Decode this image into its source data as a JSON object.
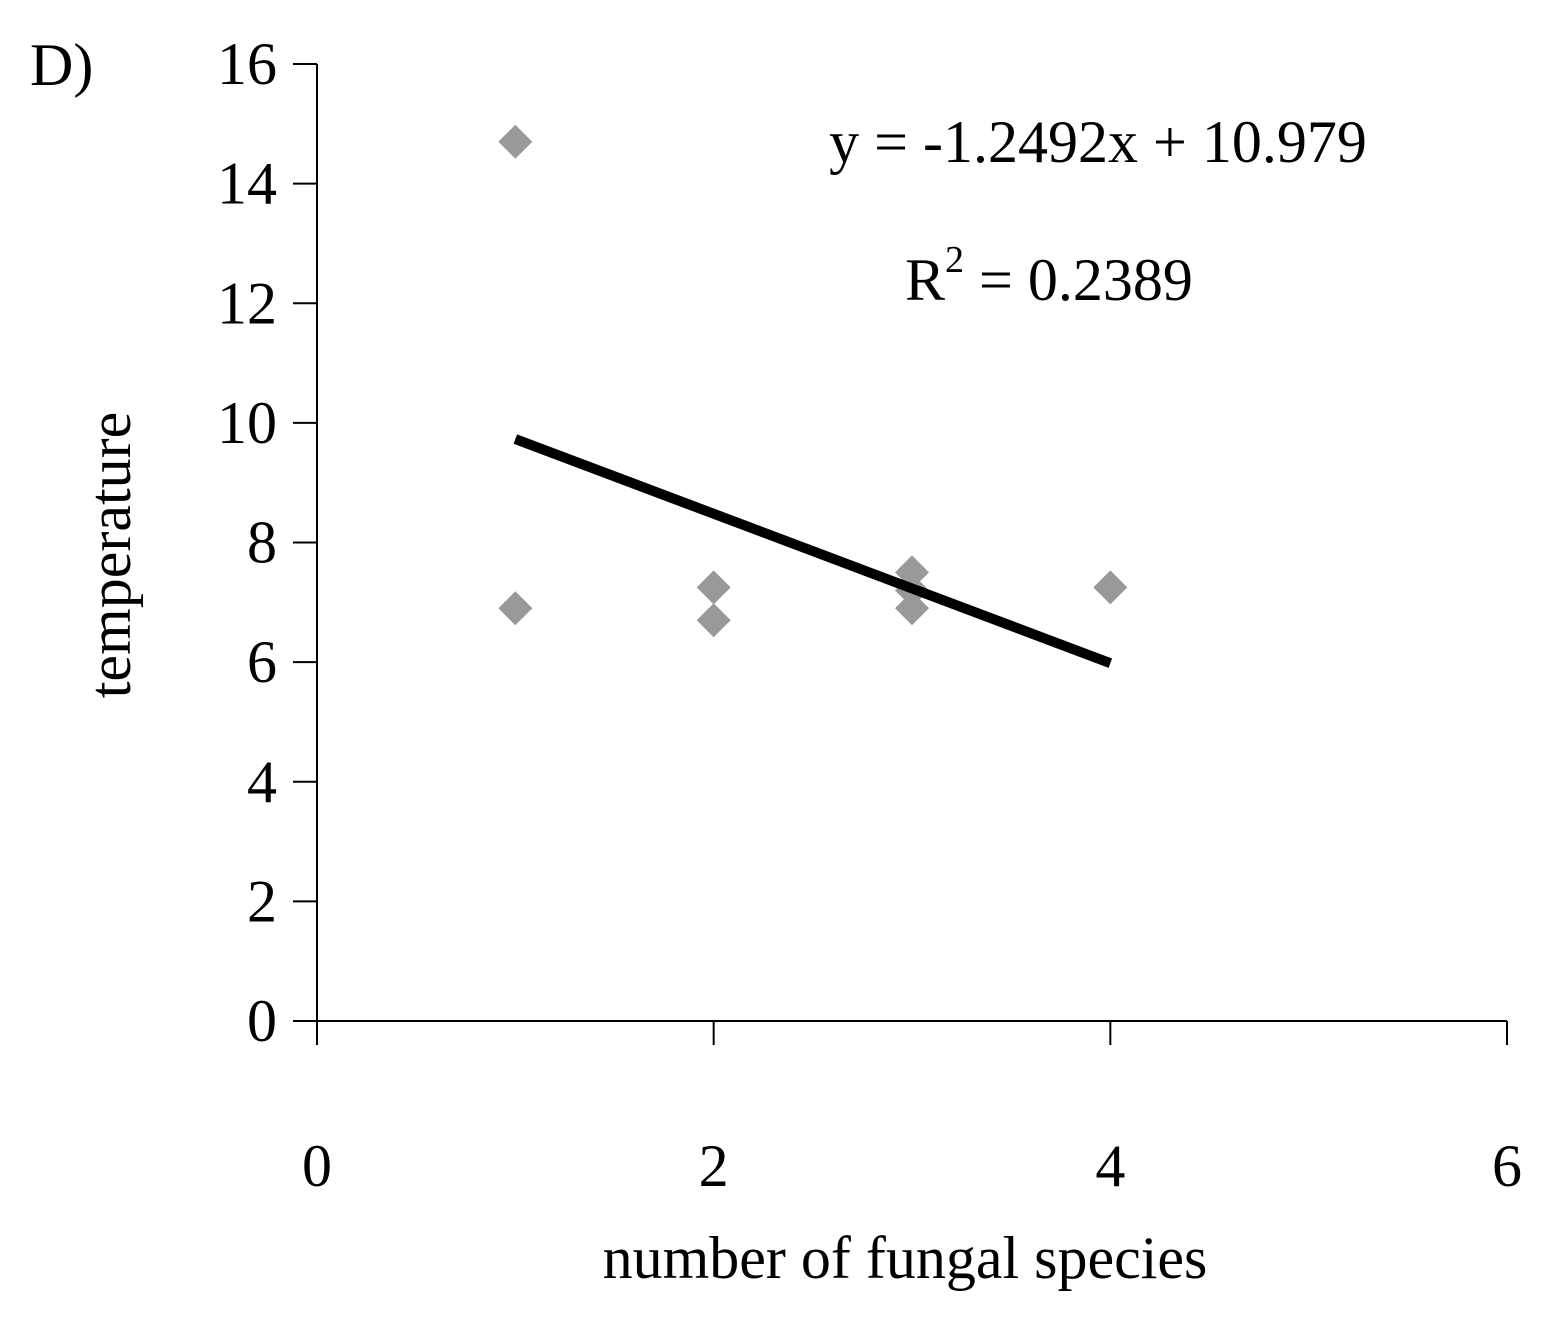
{
  "chart_data": {
    "type": "scatter",
    "panel_label": "D)",
    "x_label": "number of fungal species",
    "y_label": "temperature",
    "series": [
      {
        "name": "temperature",
        "color": "#999999",
        "x": [
          1,
          1,
          2,
          2,
          3,
          3,
          3,
          4
        ],
        "values": [
          14.7,
          6.9,
          7.25,
          6.7,
          7.5,
          7.2,
          6.9,
          7.25
        ]
      }
    ],
    "trendline": {
      "color": "#000000",
      "slope": -1.2492,
      "intercept": 10.979,
      "equation": "y = -1.2492x + 10.979",
      "r_squared": {
        "prefix": "R",
        "superscript": "2",
        "text": " = 0.2389"
      }
    },
    "xlim": [
      0,
      6
    ],
    "xticks": [
      0,
      2,
      4,
      6
    ],
    "ylim": [
      0,
      16
    ],
    "yticks": [
      0,
      2,
      4,
      6,
      8,
      10,
      12,
      14,
      16
    ]
  }
}
